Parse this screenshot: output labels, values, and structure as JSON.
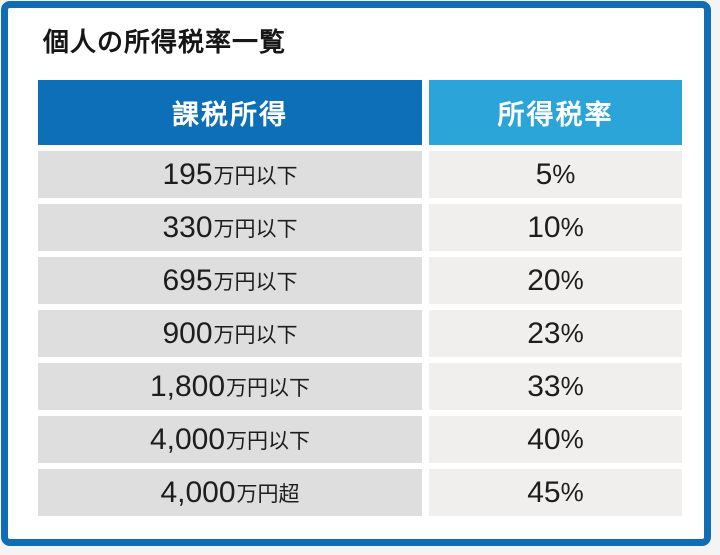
{
  "page": {
    "title": "個人の所得税率一覧"
  },
  "table": {
    "headers": [
      {
        "label": "課税所得"
      },
      {
        "label": "所得税率"
      }
    ],
    "rows": [
      {
        "income": {
          "value": "195",
          "suffix": "万円以下"
        },
        "rate": {
          "value": "5",
          "unit": "%"
        }
      },
      {
        "income": {
          "value": "330",
          "suffix": "万円以下"
        },
        "rate": {
          "value": "10",
          "unit": "%"
        }
      },
      {
        "income": {
          "value": "695",
          "suffix": "万円以下"
        },
        "rate": {
          "value": "20",
          "unit": "%"
        }
      },
      {
        "income": {
          "value": "900",
          "suffix": "万円以下"
        },
        "rate": {
          "value": "23",
          "unit": "%"
        }
      },
      {
        "income": {
          "value": "1,800",
          "suffix": "万円以下"
        },
        "rate": {
          "value": "33",
          "unit": "%"
        }
      },
      {
        "income": {
          "value": "4,000",
          "suffix": "万円以下"
        },
        "rate": {
          "value": "40",
          "unit": "%"
        }
      },
      {
        "income": {
          "value": "4,000",
          "suffix": "万円超"
        },
        "rate": {
          "value": "45",
          "unit": "%"
        }
      }
    ]
  },
  "chart_data": {
    "type": "table",
    "title": "個人の所得税率一覧",
    "columns": [
      "課税所得",
      "所得税率"
    ],
    "rows": [
      [
        "195万円以下",
        "5%"
      ],
      [
        "330万円以下",
        "10%"
      ],
      [
        "695万円以下",
        "20%"
      ],
      [
        "900万円以下",
        "23%"
      ],
      [
        "1,800万円以下",
        "33%"
      ],
      [
        "4,000万円以下",
        "40%"
      ],
      [
        "4,000万円超",
        "45%"
      ]
    ],
    "rates_percent": [
      5,
      10,
      20,
      23,
      33,
      40,
      45
    ],
    "income_thresholds_man_yen": [
      195,
      330,
      695,
      900,
      1800,
      4000,
      4000
    ]
  },
  "colors": {
    "frame-blue": "#0f6db5",
    "header-left-blue": "#0d6fb8",
    "header-right-blue": "#2ba4da",
    "income-cell-gray": "#dedede",
    "rate-cell-gray": "#f0efee",
    "card-bg": "#ffffff",
    "page-bg": "#f4f4f4",
    "title-color": "#161616",
    "cell-text": "#1d1d1d"
  }
}
